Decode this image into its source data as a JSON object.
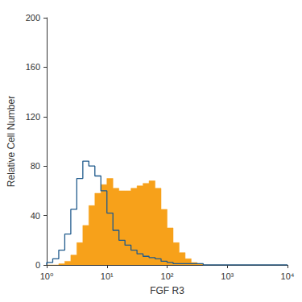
{
  "chart_data": {
    "type": "histogram",
    "log": "x",
    "grid": false,
    "xlabel": "FGF R3",
    "ylabel": "Relative Cell Number",
    "xlim": [
      1,
      10000
    ],
    "ylim": [
      0,
      200
    ],
    "xticks": [
      {
        "value": 1,
        "label": "10⁰"
      },
      {
        "value": 10,
        "label": "10¹"
      },
      {
        "value": 100,
        "label": "10²"
      },
      {
        "value": 1000,
        "label": "10³"
      },
      {
        "value": 10000,
        "label": "10⁴"
      }
    ],
    "yticks": [
      0,
      40,
      80,
      120,
      160,
      200
    ],
    "bins": [
      1,
      1.259,
      1.585,
      1.995,
      2.512,
      3.162,
      3.981,
      5.012,
      6.31,
      7.943,
      10,
      12.59,
      15.85,
      19.95,
      25.12,
      31.62,
      39.81,
      50.12,
      63.1,
      79.43,
      100,
      125.9,
      158.5,
      199.5,
      251.2,
      316.2,
      398.1,
      501.2,
      631,
      794.3,
      1000,
      1259,
      1585,
      1995,
      2512,
      3162,
      3981,
      5012,
      6310,
      7943,
      10000
    ],
    "series": [
      {
        "type": "area",
        "color": "#f7a11a",
        "values": [
          0,
          0,
          1,
          3,
          8,
          18,
          32,
          48,
          58,
          65,
          70,
          62,
          60,
          60,
          62,
          64,
          66,
          68,
          62,
          45,
          30,
          18,
          10,
          5,
          2,
          1,
          0,
          0,
          0,
          0,
          0,
          0,
          0,
          0,
          0,
          0,
          0,
          0,
          0,
          0
        ]
      },
      {
        "type": "line",
        "color": "#1f5a8c",
        "values": [
          2,
          5,
          12,
          25,
          45,
          70,
          84,
          80,
          72,
          60,
          42,
          28,
          20,
          16,
          12,
          9,
          7,
          6,
          5,
          3,
          2,
          1,
          1,
          1,
          1,
          1,
          0,
          0,
          0,
          0,
          0,
          0,
          0,
          0,
          0,
          0,
          0,
          0,
          0,
          0
        ]
      }
    ]
  }
}
